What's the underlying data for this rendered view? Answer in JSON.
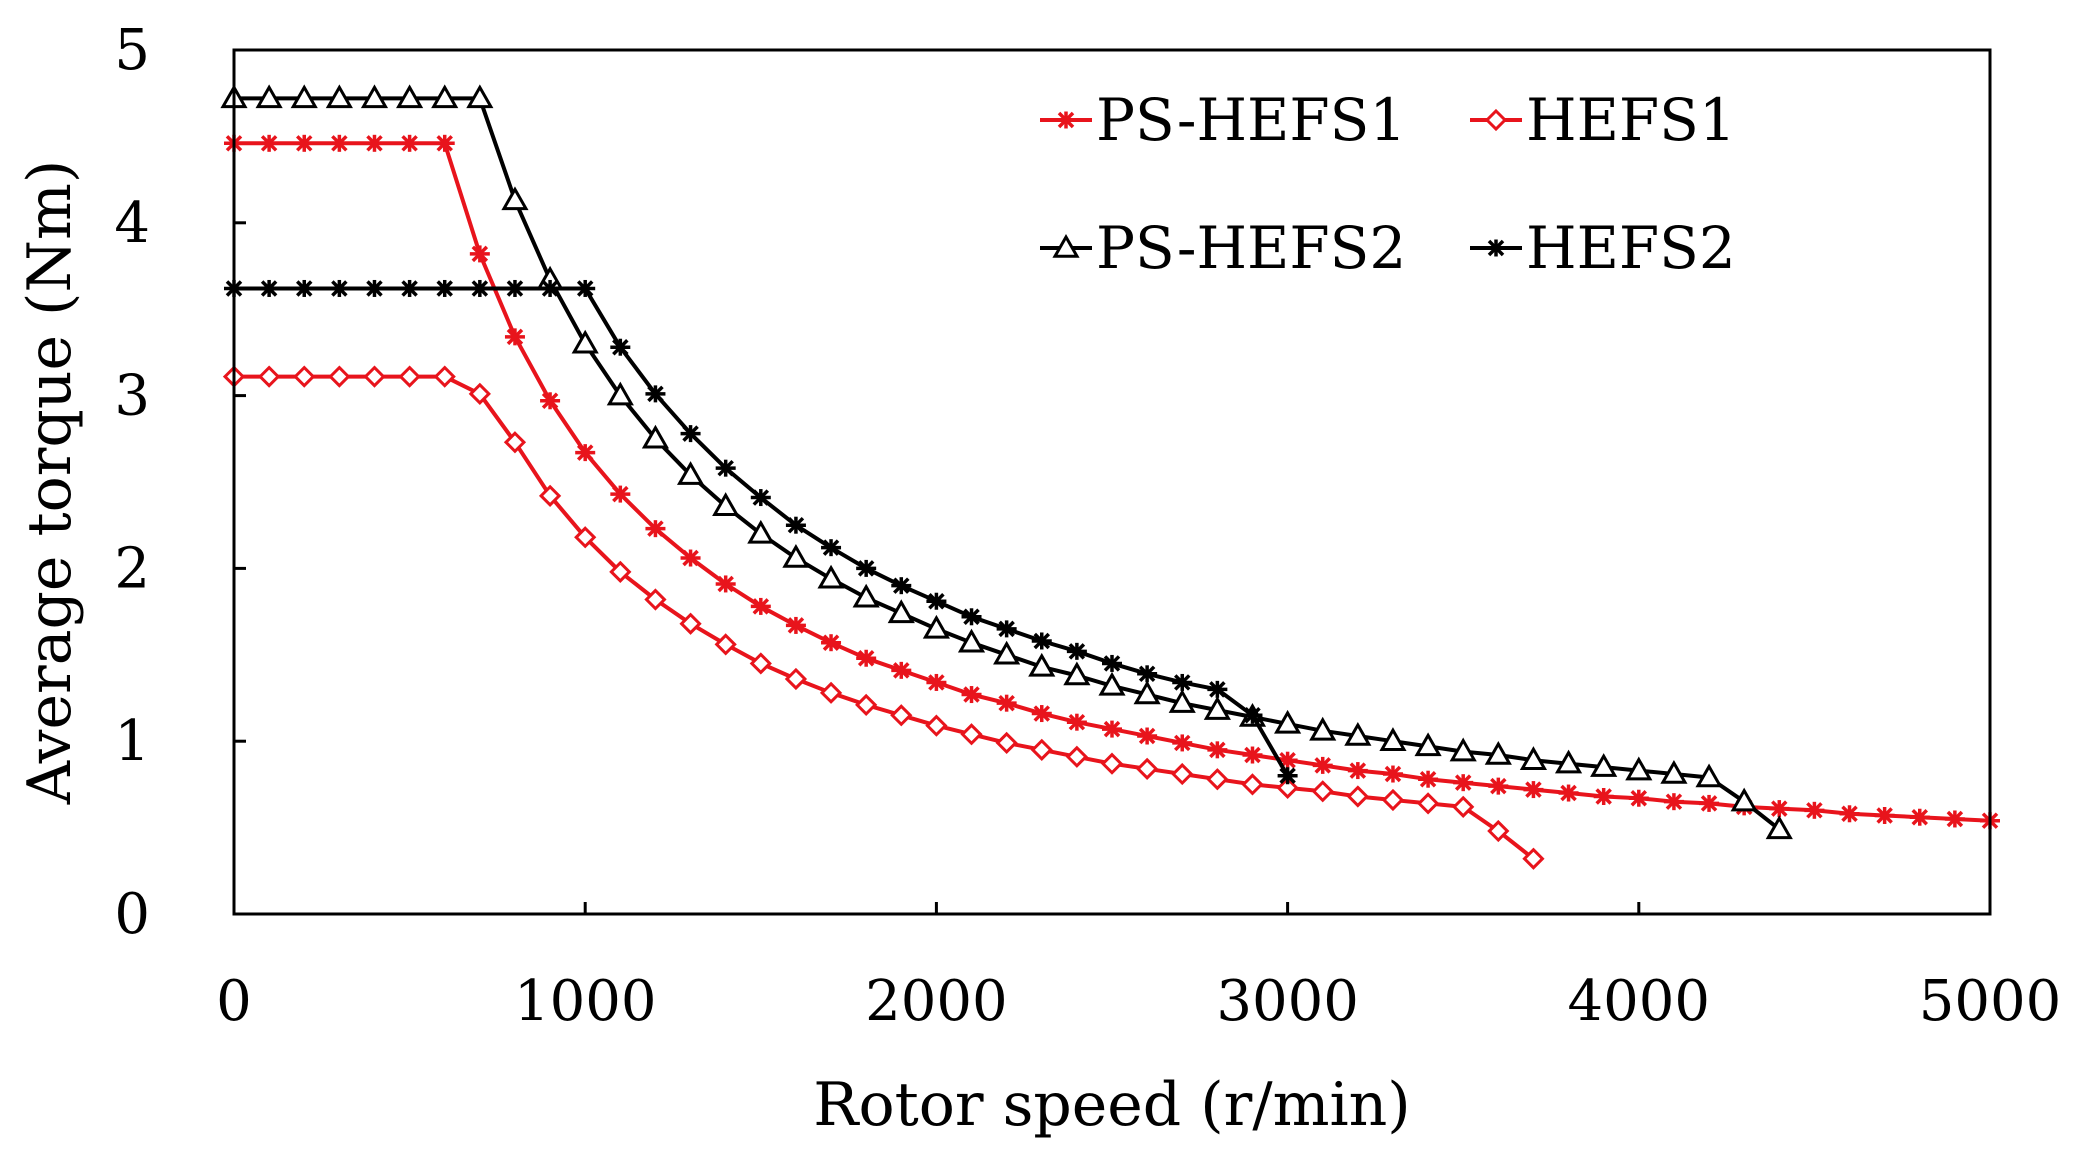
{
  "chart_data": {
    "type": "line",
    "title": "",
    "xlabel": "Rotor speed (r/min)",
    "ylabel": "Average torque (Nm)",
    "xlim": [
      0,
      5000
    ],
    "ylim": [
      0,
      5
    ],
    "xticks": [
      0,
      1000,
      2000,
      3000,
      4000,
      5000
    ],
    "yticks": [
      0,
      1,
      2,
      3,
      4,
      5
    ],
    "xtick_labels": [
      "0",
      "1000",
      "2000",
      "3000",
      "4000",
      "5000"
    ],
    "ytick_labels": [
      "0",
      "1",
      "2",
      "3",
      "4",
      "5"
    ],
    "grid": false,
    "legend_position": "top-right",
    "series": [
      {
        "name": "PS-HEFS1",
        "color": "#e8141c",
        "marker": "asterisk",
        "x": [
          0,
          100,
          200,
          300,
          400,
          500,
          600,
          700,
          800,
          900,
          1000,
          1100,
          1200,
          1300,
          1400,
          1500,
          1600,
          1700,
          1800,
          1900,
          2000,
          2100,
          2200,
          2300,
          2400,
          2500,
          2600,
          2700,
          2800,
          2900,
          3000,
          3100,
          3200,
          3300,
          3400,
          3500,
          3600,
          3700,
          3800,
          3900,
          4000,
          4100,
          4200,
          4300,
          4400,
          4500,
          4600,
          4700,
          4800,
          4900,
          5000
        ],
        "y": [
          4.46,
          4.46,
          4.46,
          4.46,
          4.46,
          4.46,
          4.46,
          3.82,
          3.34,
          2.97,
          2.67,
          2.43,
          2.23,
          2.06,
          1.91,
          1.78,
          1.67,
          1.57,
          1.48,
          1.41,
          1.34,
          1.27,
          1.22,
          1.16,
          1.11,
          1.07,
          1.03,
          0.99,
          0.95,
          0.92,
          0.89,
          0.86,
          0.83,
          0.81,
          0.78,
          0.76,
          0.74,
          0.72,
          0.7,
          0.68,
          0.67,
          0.65,
          0.64,
          0.62,
          0.61,
          0.6,
          0.58,
          0.57,
          0.56,
          0.55,
          0.54
        ]
      },
      {
        "name": "HEFS1",
        "color": "#e8141c",
        "marker": "diamond",
        "x": [
          0,
          100,
          200,
          300,
          400,
          500,
          600,
          700,
          800,
          900,
          1000,
          1100,
          1200,
          1300,
          1400,
          1500,
          1600,
          1700,
          1800,
          1900,
          2000,
          2100,
          2200,
          2300,
          2400,
          2500,
          2600,
          2700,
          2800,
          2900,
          3000,
          3100,
          3200,
          3300,
          3400,
          3500,
          3600,
          3700
        ],
        "y": [
          3.11,
          3.11,
          3.11,
          3.11,
          3.11,
          3.11,
          3.11,
          3.01,
          2.73,
          2.42,
          2.18,
          1.98,
          1.82,
          1.68,
          1.56,
          1.45,
          1.36,
          1.28,
          1.21,
          1.15,
          1.09,
          1.04,
          0.99,
          0.95,
          0.91,
          0.87,
          0.84,
          0.81,
          0.78,
          0.75,
          0.73,
          0.71,
          0.68,
          0.66,
          0.64,
          0.62,
          0.48,
          0.32
        ]
      },
      {
        "name": "PS-HEFS2",
        "color": "#000000",
        "marker": "triangle",
        "x": [
          0,
          100,
          200,
          300,
          400,
          500,
          600,
          700,
          800,
          900,
          1000,
          1100,
          1200,
          1300,
          1400,
          1500,
          1600,
          1700,
          1800,
          1900,
          2000,
          2100,
          2200,
          2300,
          2400,
          2500,
          2600,
          2700,
          2800,
          2900,
          3000,
          3100,
          3200,
          3300,
          3400,
          3500,
          3600,
          3700,
          3800,
          3900,
          4000,
          4100,
          4200,
          4300,
          4400
        ],
        "y": [
          4.72,
          4.72,
          4.72,
          4.72,
          4.72,
          4.72,
          4.72,
          4.72,
          4.13,
          3.67,
          3.3,
          3.0,
          2.75,
          2.54,
          2.36,
          2.2,
          2.06,
          1.94,
          1.83,
          1.74,
          1.65,
          1.57,
          1.5,
          1.43,
          1.38,
          1.32,
          1.27,
          1.22,
          1.18,
          1.14,
          1.1,
          1.06,
          1.03,
          1.0,
          0.97,
          0.94,
          0.92,
          0.89,
          0.87,
          0.85,
          0.83,
          0.81,
          0.79,
          0.65,
          0.49
        ]
      },
      {
        "name": "HEFS2",
        "color": "#000000",
        "marker": "asterisk",
        "x": [
          0,
          100,
          200,
          300,
          400,
          500,
          600,
          700,
          800,
          900,
          1000,
          1100,
          1200,
          1300,
          1400,
          1500,
          1600,
          1700,
          1800,
          1900,
          2000,
          2100,
          2200,
          2300,
          2400,
          2500,
          2600,
          2700,
          2800,
          2900,
          3000
        ],
        "y": [
          3.62,
          3.62,
          3.62,
          3.62,
          3.62,
          3.62,
          3.62,
          3.62,
          3.62,
          3.62,
          3.62,
          3.28,
          3.01,
          2.78,
          2.58,
          2.41,
          2.25,
          2.12,
          2.0,
          1.9,
          1.81,
          1.72,
          1.65,
          1.58,
          1.52,
          1.45,
          1.39,
          1.34,
          1.3,
          1.15,
          0.8
        ]
      }
    ]
  }
}
